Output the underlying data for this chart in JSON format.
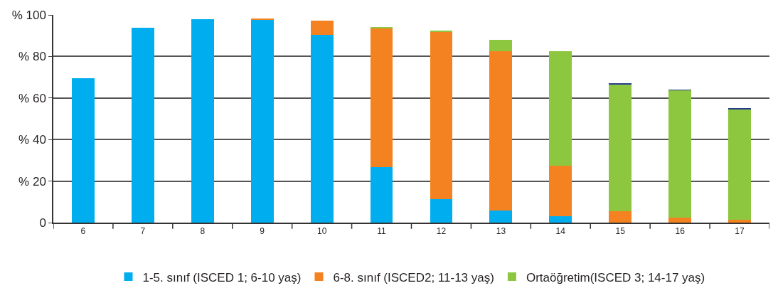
{
  "chart_data": {
    "type": "bar",
    "stacked": true,
    "categories": [
      "6",
      "7",
      "8",
      "9",
      "10",
      "11",
      "12",
      "13",
      "14",
      "15",
      "16",
      "17"
    ],
    "series": [
      {
        "name": "1-5. sınıf (ISCED 1; 6-10 yaş)",
        "color": "#00aeef",
        "values": [
          69.6,
          93.9,
          98.1,
          97.8,
          90.5,
          26.8,
          11.2,
          5.8,
          3.0,
          null,
          null,
          null
        ]
      },
      {
        "name": "6-8. sınıf (ISCED2; 11-13 yaş)",
        "color": "#f58220",
        "values": [
          null,
          null,
          null,
          0.6,
          6.6,
          66.9,
          80.8,
          76.7,
          24.3,
          5.5,
          2.3,
          1.3
        ]
      },
      {
        "name": "Ortaöğretim(ISCED 3; 14-17 yaş)",
        "color": "#8dc63f",
        "values": [
          null,
          null,
          null,
          null,
          null,
          0.5,
          0.3,
          5.5,
          55.1,
          61.0,
          61.4,
          53.0
        ]
      },
      {
        "color": "#253f8e",
        "values": [
          null,
          null,
          null,
          null,
          null,
          null,
          null,
          null,
          null,
          0.6,
          0.3,
          1.0
        ]
      }
    ],
    "ylim": [
      0,
      100
    ],
    "yticks": [
      0,
      {
        "value": 20,
        "label": "% 20"
      },
      {
        "value": 40,
        "label": "% 40"
      },
      {
        "value": 60,
        "label": "% 60"
      },
      {
        "value": 80,
        "label": "% 80"
      },
      {
        "value": 100,
        "label": "% 100"
      }
    ],
    "grid": "y",
    "legend": "bottom"
  }
}
